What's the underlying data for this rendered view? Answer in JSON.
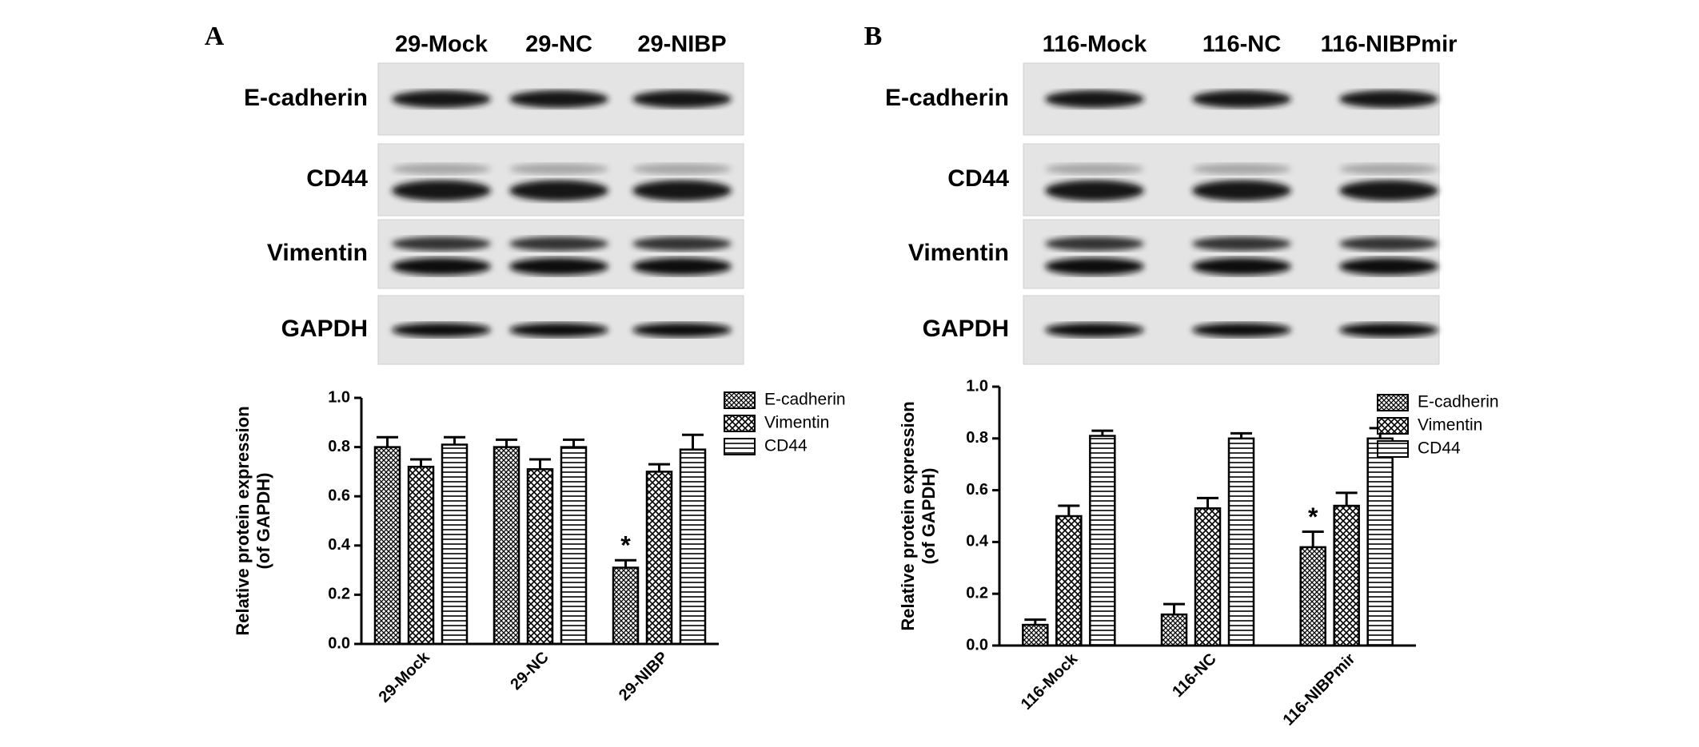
{
  "chart_data": [
    {
      "type": "bar",
      "panel": "A",
      "blot_lanes": [
        "29-Mock",
        "29-NC",
        "29-NIBP"
      ],
      "blot_rows": [
        "E-cadherin",
        "CD44",
        "Vimentin",
        "GAPDH"
      ],
      "ylabel": [
        "Relative protein expression",
        "(of GAPDH)"
      ],
      "categories": [
        "29-Mock",
        "29-NC",
        "29-NIBP"
      ],
      "series": [
        {
          "name": "E-cadherin",
          "color": "#000000",
          "pattern": "crosshatch",
          "values": [
            0.8,
            0.8,
            0.31
          ],
          "errors": [
            0.04,
            0.03,
            0.03
          ],
          "markers": [
            null,
            null,
            "*"
          ]
        },
        {
          "name": "Vimentin",
          "color": "#000000",
          "pattern": "checker",
          "values": [
            0.72,
            0.71,
            0.7
          ],
          "errors": [
            0.03,
            0.04,
            0.03
          ]
        },
        {
          "name": "CD44",
          "color": "#000000",
          "pattern": "stripes",
          "values": [
            0.81,
            0.8,
            0.79
          ],
          "errors": [
            0.03,
            0.03,
            0.06
          ]
        }
      ],
      "ylim": [
        0,
        1
      ],
      "yticks": [
        {
          "value": 0,
          "label": "0.0"
        },
        0.2,
        0.4,
        0.6,
        0.8,
        {
          "value": 1,
          "label": "1.0"
        }
      ],
      "legend": "upper right"
    },
    {
      "type": "bar",
      "panel": "B",
      "blot_lanes": [
        "116-Mock",
        "116-NC",
        "116-NIBPmir"
      ],
      "blot_rows": [
        "E-cadherin",
        "CD44",
        "Vimentin",
        "GAPDH"
      ],
      "ylabel": [
        "Relative protein expression",
        "(of GAPDH)"
      ],
      "categories": [
        "116-Mock",
        "116-NC",
        "116-NIBPmir"
      ],
      "series": [
        {
          "name": "E-cadherin",
          "color": "#000000",
          "pattern": "crosshatch",
          "values": [
            0.08,
            0.12,
            0.38
          ],
          "errors": [
            0.02,
            0.04,
            0.06
          ],
          "markers": [
            null,
            null,
            "*"
          ]
        },
        {
          "name": "Vimentin",
          "color": "#000000",
          "pattern": "checker",
          "values": [
            0.5,
            0.53,
            0.54
          ],
          "errors": [
            0.04,
            0.04,
            0.05
          ]
        },
        {
          "name": "CD44",
          "color": "#000000",
          "pattern": "stripes",
          "values": [
            0.81,
            0.8,
            0.8
          ],
          "errors": [
            0.02,
            0.02,
            0.04
          ]
        }
      ],
      "ylim": [
        0,
        1
      ],
      "yticks": [
        {
          "value": 0,
          "label": "0.0"
        },
        0.2,
        0.4,
        0.6,
        0.8,
        {
          "value": 1,
          "label": "1.0"
        }
      ],
      "legend": "upper right"
    }
  ]
}
